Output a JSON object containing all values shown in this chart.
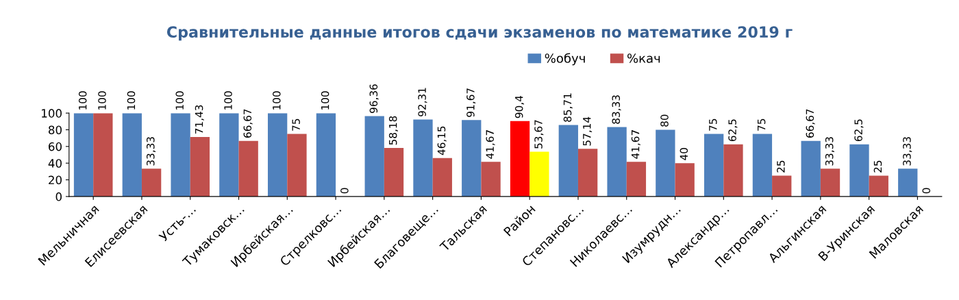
{
  "chart_data": {
    "type": "bar",
    "title": "Сравнительные данные итогов сдачи экзаменов по математике 2019 г",
    "categories": [
      "Мельничная",
      "Елисеевская",
      "Усть-…",
      "Тумаковск…",
      "Ирбейская…",
      "Стрелковс…",
      "Ирбейская…",
      "Благовеще…",
      "Тальская",
      "Район",
      "Степановс…",
      "Николаевс…",
      "Изумрудн…",
      "Александр…",
      "Петропавл…",
      "Альгинская",
      "В-Уринская",
      "Маловская"
    ],
    "series": [
      {
        "name": "%обуч",
        "color": "#4f81bd",
        "colors": [
          "#4f81bd",
          "#4f81bd",
          "#4f81bd",
          "#4f81bd",
          "#4f81bd",
          "#4f81bd",
          "#4f81bd",
          "#4f81bd",
          "#4f81bd",
          "#ff0000",
          "#4f81bd",
          "#4f81bd",
          "#4f81bd",
          "#4f81bd",
          "#4f81bd",
          "#4f81bd",
          "#4f81bd",
          "#4f81bd"
        ],
        "values": [
          100,
          100,
          100,
          100,
          100,
          100,
          96.36,
          92.31,
          91.67,
          90.4,
          85.71,
          83.33,
          80,
          75,
          75,
          66.67,
          62.5,
          33.33
        ],
        "value_labels": [
          "100",
          "100",
          "100",
          "100",
          "100",
          "100",
          "96,36",
          "92,31",
          "91,67",
          "90,4",
          "85,71",
          "83,33",
          "80",
          "75",
          "75",
          "66,67",
          "62,5",
          "33,33"
        ]
      },
      {
        "name": "%кач",
        "color": "#c0504d",
        "colors": [
          "#c0504d",
          "#c0504d",
          "#c0504d",
          "#c0504d",
          "#c0504d",
          "#c0504d",
          "#c0504d",
          "#c0504d",
          "#c0504d",
          "#ffff00",
          "#c0504d",
          "#c0504d",
          "#c0504d",
          "#c0504d",
          "#c0504d",
          "#c0504d",
          "#c0504d",
          "#c0504d"
        ],
        "values": [
          100,
          33.33,
          71.43,
          66.67,
          75,
          0,
          58.18,
          46.15,
          41.67,
          53.67,
          57.14,
          41.67,
          40,
          62.5,
          25,
          33.33,
          25,
          0
        ],
        "value_labels": [
          "100",
          "33,33",
          "71,43",
          "66,67",
          "75",
          "0",
          "58,18",
          "46,15",
          "41,67",
          "53,67",
          "57,14",
          "41,67",
          "40",
          "62,5",
          "25",
          "33,33",
          "25",
          "0"
        ]
      }
    ],
    "ylim": [
      0,
      100
    ],
    "yticks": [
      0,
      20,
      40,
      60,
      80,
      100
    ],
    "grid": false,
    "legend": "top"
  }
}
